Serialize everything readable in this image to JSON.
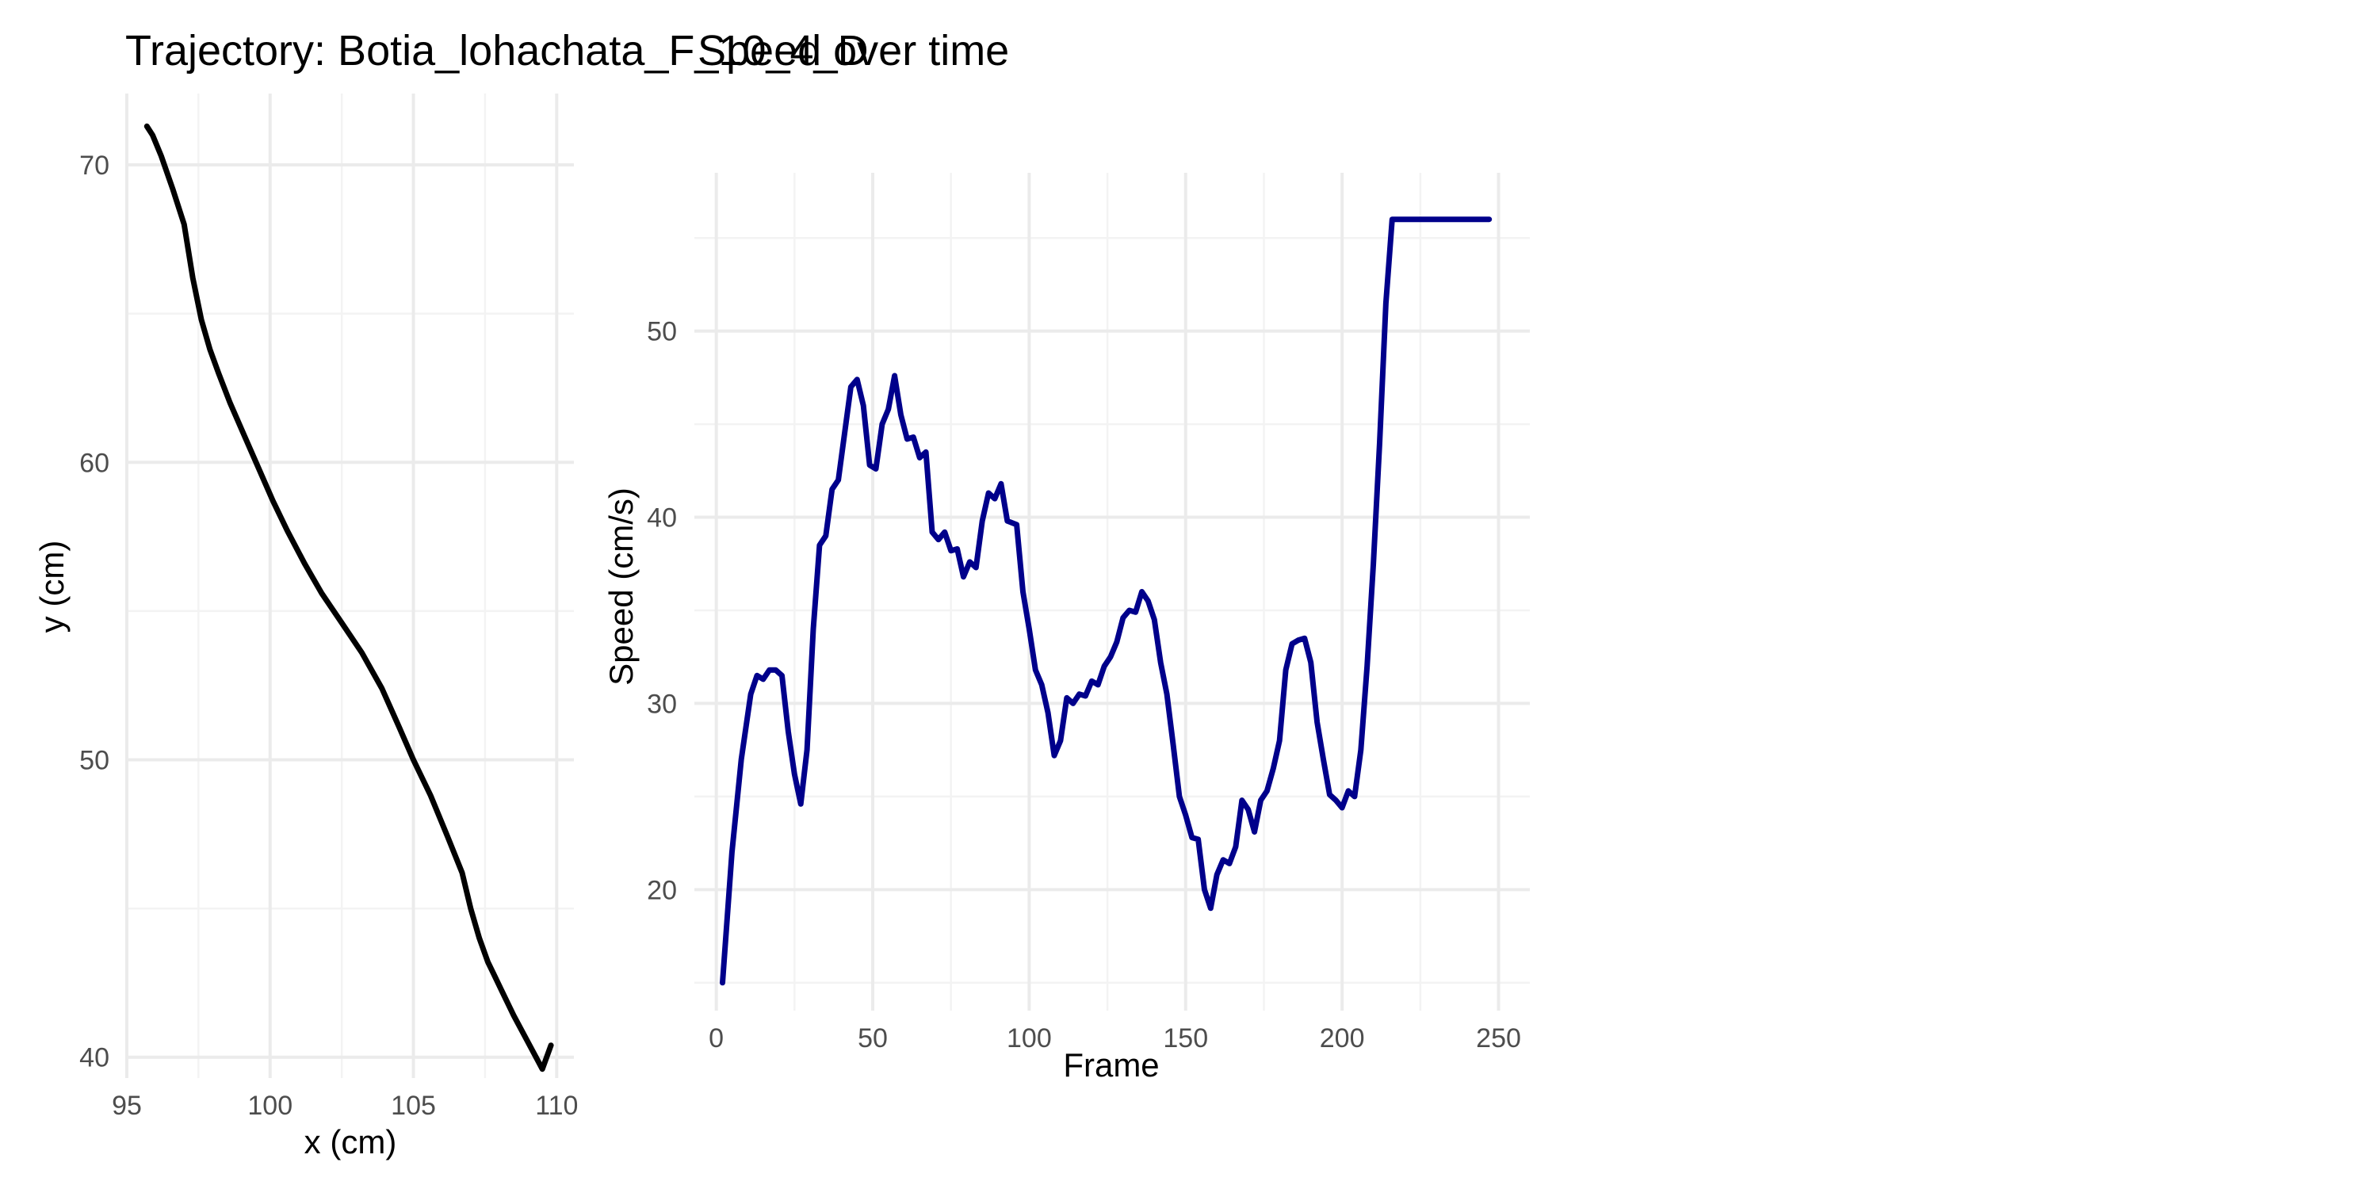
{
  "chart_data": [
    {
      "type": "line",
      "title": "Trajectory: Botia_lohachata_F_10_4_D",
      "xlabel": "x (cm)",
      "ylabel": "y (cm)",
      "xlim": [
        95,
        110.6
      ],
      "ylim": [
        39.3,
        72.4
      ],
      "xticks": [
        95,
        100,
        105,
        110
      ],
      "yticks": [
        40,
        50,
        60,
        70
      ],
      "grid": true,
      "legend": "none",
      "line_color": "#000000",
      "series": [
        {
          "x": [
            95.7,
            95.9,
            96.2,
            96.6,
            97.0,
            97.3,
            97.6,
            97.9,
            98.2,
            98.6,
            99.1,
            99.6,
            100.1,
            100.6,
            101.2,
            101.8,
            102.5,
            103.2,
            103.9,
            104.5,
            105.0,
            105.6,
            106.2,
            106.7,
            107.0,
            107.3,
            107.6,
            107.8,
            108.1,
            108.5,
            109.0,
            109.5,
            109.8
          ],
          "y": [
            71.3,
            71.0,
            70.3,
            69.2,
            68.0,
            66.2,
            64.8,
            63.8,
            63.0,
            62.0,
            60.9,
            59.8,
            58.7,
            57.7,
            56.6,
            55.6,
            54.6,
            53.6,
            52.4,
            51.1,
            50.0,
            48.8,
            47.4,
            46.2,
            45.0,
            44.0,
            43.2,
            42.8,
            42.2,
            41.4,
            40.5,
            39.6,
            40.4
          ]
        }
      ]
    },
    {
      "type": "line",
      "title": "Speed over time",
      "xlabel": "Frame",
      "ylabel": "Speed (cm/s)",
      "xlim": [
        -7,
        260
      ],
      "ylim": [
        13.5,
        58.5
      ],
      "xticks": [
        0,
        50,
        100,
        150,
        200,
        250
      ],
      "yticks": [
        20,
        30,
        40,
        50
      ],
      "grid": true,
      "legend": "none",
      "line_color": "#00008B",
      "series": [
        {
          "x": [
            2,
            5,
            8,
            11,
            13,
            15,
            17,
            19,
            21,
            23,
            25,
            27,
            29,
            31,
            33,
            35,
            37,
            39,
            41,
            43,
            45,
            47,
            49,
            51,
            53,
            55,
            57,
            59,
            61,
            63,
            65,
            67,
            69,
            71,
            73,
            75,
            77,
            79,
            81,
            83,
            85,
            87,
            89,
            91,
            93,
            96,
            98,
            100,
            102,
            104,
            106,
            108,
            110,
            112,
            114,
            116,
            118,
            120,
            122,
            124,
            126,
            128,
            130,
            132,
            134,
            136,
            138,
            140,
            142,
            144,
            146,
            148,
            150,
            152,
            154,
            156,
            158,
            160,
            162,
            164,
            166,
            168,
            170,
            172,
            174,
            176,
            178,
            180,
            182,
            184,
            186,
            188,
            190,
            192,
            194,
            196,
            198,
            200,
            202,
            204,
            206,
            208,
            210,
            212,
            214,
            216,
            218,
            220,
            222,
            224,
            226,
            228,
            230,
            232,
            234,
            236,
            238,
            240,
            242,
            244,
            246,
            247
          ],
          "y": [
            15.0,
            22.0,
            27.0,
            30.5,
            31.5,
            31.3,
            31.8,
            31.8,
            31.5,
            28.5,
            26.2,
            24.6,
            27.5,
            34.0,
            38.5,
            39.0,
            41.5,
            42.0,
            44.5,
            47.0,
            47.4,
            46.0,
            42.8,
            42.6,
            45.0,
            45.8,
            47.6,
            45.5,
            44.2,
            44.3,
            43.2,
            43.5,
            39.2,
            38.8,
            39.2,
            38.2,
            38.3,
            36.8,
            37.6,
            37.3,
            39.8,
            41.3,
            41.0,
            41.8,
            39.8,
            39.6,
            36.0,
            34.0,
            31.8,
            31.0,
            29.5,
            27.2,
            28.0,
            30.3,
            30.0,
            30.5,
            30.4,
            31.2,
            31.0,
            32.0,
            32.5,
            33.3,
            34.6,
            35.0,
            34.9,
            36.0,
            35.5,
            34.5,
            32.2,
            30.5,
            27.8,
            25.0,
            24.0,
            22.8,
            22.7,
            20.0,
            19.0,
            20.8,
            21.6,
            21.4,
            22.3,
            24.8,
            24.3,
            23.1,
            24.8,
            25.3,
            26.5,
            28.0,
            31.8,
            33.2,
            33.4,
            33.5,
            32.2,
            29.0,
            27.0,
            25.1,
            24.8,
            24.4,
            25.3,
            25.0,
            27.5,
            32.0,
            37.5,
            44.0,
            51.5,
            56.0,
            56.0,
            56.0,
            56.0,
            56.0,
            56.0,
            56.0,
            56.0,
            56.0,
            56.0,
            56.0,
            56.0,
            56.0,
            56.0,
            56.0,
            56.0,
            56.0
          ]
        }
      ]
    }
  ]
}
